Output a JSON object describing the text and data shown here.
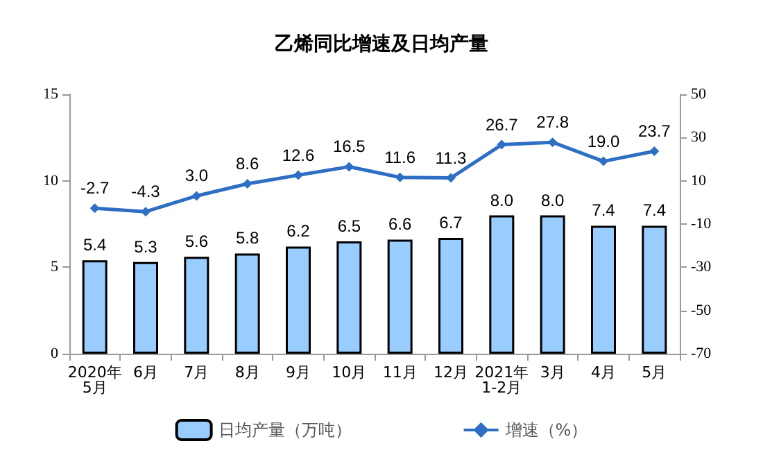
{
  "chart_data": {
    "type": "bar",
    "title": "乙烯同比增速及日均产量",
    "categories": [
      "2020年\n5月",
      "6月",
      "7月",
      "8月",
      "9月",
      "10月",
      "11月",
      "12月",
      "2021年\n1-2月",
      "3月",
      "4月",
      "5月"
    ],
    "series": [
      {
        "name": "日均产量（万吨）",
        "color": "#99ccff",
        "values": [
          5.4,
          5.3,
          5.6,
          5.8,
          6.2,
          6.5,
          6.6,
          6.7,
          8.0,
          8.0,
          7.4,
          7.4
        ],
        "value_labels": [
          "5.4",
          "5.3",
          "5.6",
          "5.8",
          "6.2",
          "6.5",
          "6.6",
          "6.7",
          "8.0",
          "8.0",
          "7.4",
          "7.4"
        ]
      },
      {
        "name": "增速（%）",
        "type": "line",
        "axis": "y2",
        "color": "#2e6fc4",
        "values": [
          -2.7,
          -4.3,
          3.0,
          8.6,
          12.6,
          16.5,
          11.6,
          11.3,
          26.7,
          27.8,
          19.0,
          23.7
        ],
        "value_labels": [
          "-2.7",
          "-4.3",
          "3.0",
          "8.6",
          "12.6",
          "16.5",
          "11.6",
          "11.3",
          "26.7",
          "27.8",
          "19.0",
          "23.7"
        ]
      }
    ],
    "ylim": [
      0,
      15
    ],
    "yticks": [
      0,
      5,
      10,
      15
    ],
    "y2lim": [
      -70,
      50
    ],
    "y2ticks": [
      -70,
      -50,
      -30,
      -10,
      10,
      30,
      50
    ],
    "legend": "bottom",
    "grid": false,
    "marker": "diamond"
  }
}
